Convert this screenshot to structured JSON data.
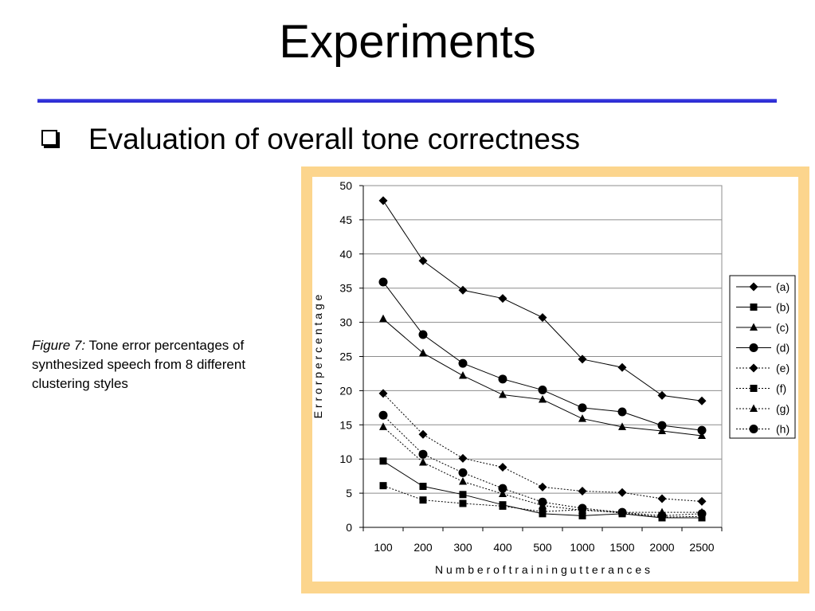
{
  "slide": {
    "title": "Experiments",
    "bullet": "Evaluation of overall tone correctness",
    "caption_label": "Figure 7:",
    "caption_text": " Tone error percentages of synthesized speech from 8 different clustering styles"
  },
  "chart_data": {
    "type": "line",
    "categories": [
      "100",
      "200",
      "300",
      "400",
      "500",
      "1000",
      "1500",
      "2000",
      "2500"
    ],
    "xlabel": "N u m b e r   o f   t r a i n i n g   u t t e r a n c e s",
    "ylabel": "E r r o r   p e r c e n t a g e",
    "ylim": [
      0,
      50
    ],
    "yticks": [
      0,
      5,
      10,
      15,
      20,
      25,
      30,
      35,
      40,
      45,
      50
    ],
    "grid": "horizontal",
    "legend": "right",
    "series": [
      {
        "name": "(a)",
        "marker": "diamond",
        "style": "solid",
        "values": [
          47.8,
          39.0,
          34.7,
          33.5,
          30.7,
          24.6,
          23.4,
          19.3,
          18.5
        ]
      },
      {
        "name": "(b)",
        "marker": "square",
        "style": "solid",
        "values": [
          9.7,
          6.0,
          4.8,
          3.3,
          2.0,
          1.7,
          2.0,
          1.4,
          1.4
        ]
      },
      {
        "name": "(c)",
        "marker": "triangle",
        "style": "solid",
        "values": [
          30.5,
          25.5,
          22.2,
          19.4,
          18.7,
          15.9,
          14.7,
          14.1,
          13.4
        ]
      },
      {
        "name": "(d)",
        "marker": "circle",
        "style": "solid",
        "values": [
          35.9,
          28.2,
          24.0,
          21.7,
          20.1,
          17.5,
          16.9,
          14.9,
          14.2
        ]
      },
      {
        "name": "(e)",
        "marker": "diamond",
        "style": "dotted",
        "values": [
          19.6,
          13.6,
          10.1,
          8.8,
          5.9,
          5.3,
          5.1,
          4.2,
          3.8
        ]
      },
      {
        "name": "(f)",
        "marker": "square",
        "style": "dotted",
        "values": [
          6.1,
          4.0,
          3.5,
          3.1,
          2.3,
          2.6,
          2.1,
          1.5,
          1.6
        ]
      },
      {
        "name": "(g)",
        "marker": "triangle",
        "style": "dotted",
        "values": [
          14.7,
          9.5,
          6.7,
          4.9,
          3.2,
          2.5,
          2.2,
          2.2,
          2.2
        ]
      },
      {
        "name": "(h)",
        "marker": "circle",
        "style": "dotted",
        "values": [
          16.4,
          10.7,
          8.0,
          5.7,
          3.7,
          2.8,
          2.2,
          1.7,
          2.0
        ]
      }
    ]
  }
}
